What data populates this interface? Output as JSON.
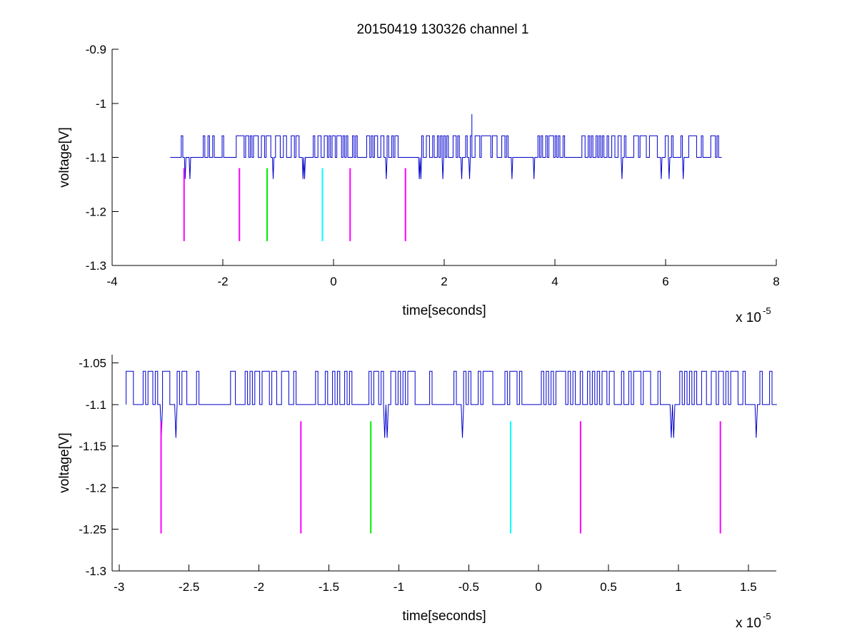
{
  "figure_title": "20150419 130326 channel 1",
  "chart_data": [
    {
      "type": "line",
      "title": "20150419 130326 channel 1",
      "xlabel": "time[seconds]",
      "ylabel": "voltage[V]",
      "x_multiplier": "x 10",
      "x_exponent": "-5",
      "xlim": [
        -4,
        8
      ],
      "ylim": [
        -1.3,
        -0.9
      ],
      "xticks": [
        -4,
        -2,
        0,
        2,
        4,
        6,
        8
      ],
      "xtick_labels": [
        "-4",
        "-2",
        "0",
        "2",
        "4",
        "6",
        "8"
      ],
      "yticks": [
        -1.3,
        -1.2,
        -1.1,
        -1,
        -0.9
      ],
      "ytick_labels": [
        "-1.3",
        "-1.2",
        "-1.1",
        "-1",
        "-0.9"
      ],
      "grid": false,
      "series": [
        {
          "color": "#0000cc",
          "signal": {
            "x_start": -2.95,
            "x_end": 7.0,
            "baseline": -1.1,
            "high_level": -1.06,
            "dip_level": -1.14,
            "peak": {
              "x": 2.5,
              "y": -1.02
            },
            "dips_x": [
              -2.7,
              -2.6,
              -1.1,
              -0.55,
              0.95,
              1.55,
              1.95,
              2.3,
              2.45,
              3.2,
              3.6,
              5.2,
              5.9,
              6.05,
              6.3
            ]
          }
        }
      ],
      "markers": [
        {
          "x": -2.7,
          "y_top": -1.12,
          "y_bottom": -1.255,
          "color": "#ff00ff"
        },
        {
          "x": -1.7,
          "y_top": -1.12,
          "y_bottom": -1.255,
          "color": "#ff00ff"
        },
        {
          "x": -1.2,
          "y_top": -1.12,
          "y_bottom": -1.255,
          "color": "#00ee00"
        },
        {
          "x": -0.2,
          "y_top": -1.12,
          "y_bottom": -1.255,
          "color": "#00ffff"
        },
        {
          "x": 0.3,
          "y_top": -1.12,
          "y_bottom": -1.255,
          "color": "#ff00ff"
        },
        {
          "x": 1.3,
          "y_top": -1.12,
          "y_bottom": -1.255,
          "color": "#ff00ff"
        }
      ]
    },
    {
      "type": "line",
      "title": "",
      "xlabel": "time[seconds]",
      "ylabel": "voltage[V]",
      "x_multiplier": "x 10",
      "x_exponent": "-5",
      "xlim": [
        -3.05,
        1.7
      ],
      "ylim": [
        -1.3,
        -1.04
      ],
      "xticks": [
        -3,
        -2.5,
        -2,
        -1.5,
        -1,
        -0.5,
        0,
        0.5,
        1,
        1.5
      ],
      "xtick_labels": [
        "-3",
        "-2.5",
        "-2",
        "-1.5",
        "-1",
        "-0.5",
        "0",
        "0.5",
        "1",
        "1.5"
      ],
      "yticks": [
        -1.3,
        -1.25,
        -1.2,
        -1.15,
        -1.1,
        -1.05
      ],
      "ytick_labels": [
        "-1.3",
        "-1.25",
        "-1.2",
        "-1.15",
        "-1.1",
        "-1.05"
      ],
      "grid": false,
      "series": [
        {
          "color": "#0000cc",
          "signal": {
            "x_start": -2.95,
            "x_end": 1.7,
            "baseline": -1.1,
            "high_level": -1.06,
            "dip_level": -1.14,
            "dips_x": [
              -2.7,
              -2.6,
              -1.1,
              -0.55,
              0.95,
              1.55
            ]
          }
        }
      ],
      "markers": [
        {
          "x": -2.7,
          "y_top": -1.12,
          "y_bottom": -1.255,
          "color": "#ff00ff"
        },
        {
          "x": -1.7,
          "y_top": -1.12,
          "y_bottom": -1.255,
          "color": "#ff00ff"
        },
        {
          "x": -1.2,
          "y_top": -1.12,
          "y_bottom": -1.255,
          "color": "#00ee00"
        },
        {
          "x": -0.2,
          "y_top": -1.12,
          "y_bottom": -1.255,
          "color": "#00ffff"
        },
        {
          "x": 0.3,
          "y_top": -1.12,
          "y_bottom": -1.255,
          "color": "#ff00ff"
        },
        {
          "x": 1.3,
          "y_top": -1.12,
          "y_bottom": -1.255,
          "color": "#ff00ff"
        }
      ]
    }
  ]
}
